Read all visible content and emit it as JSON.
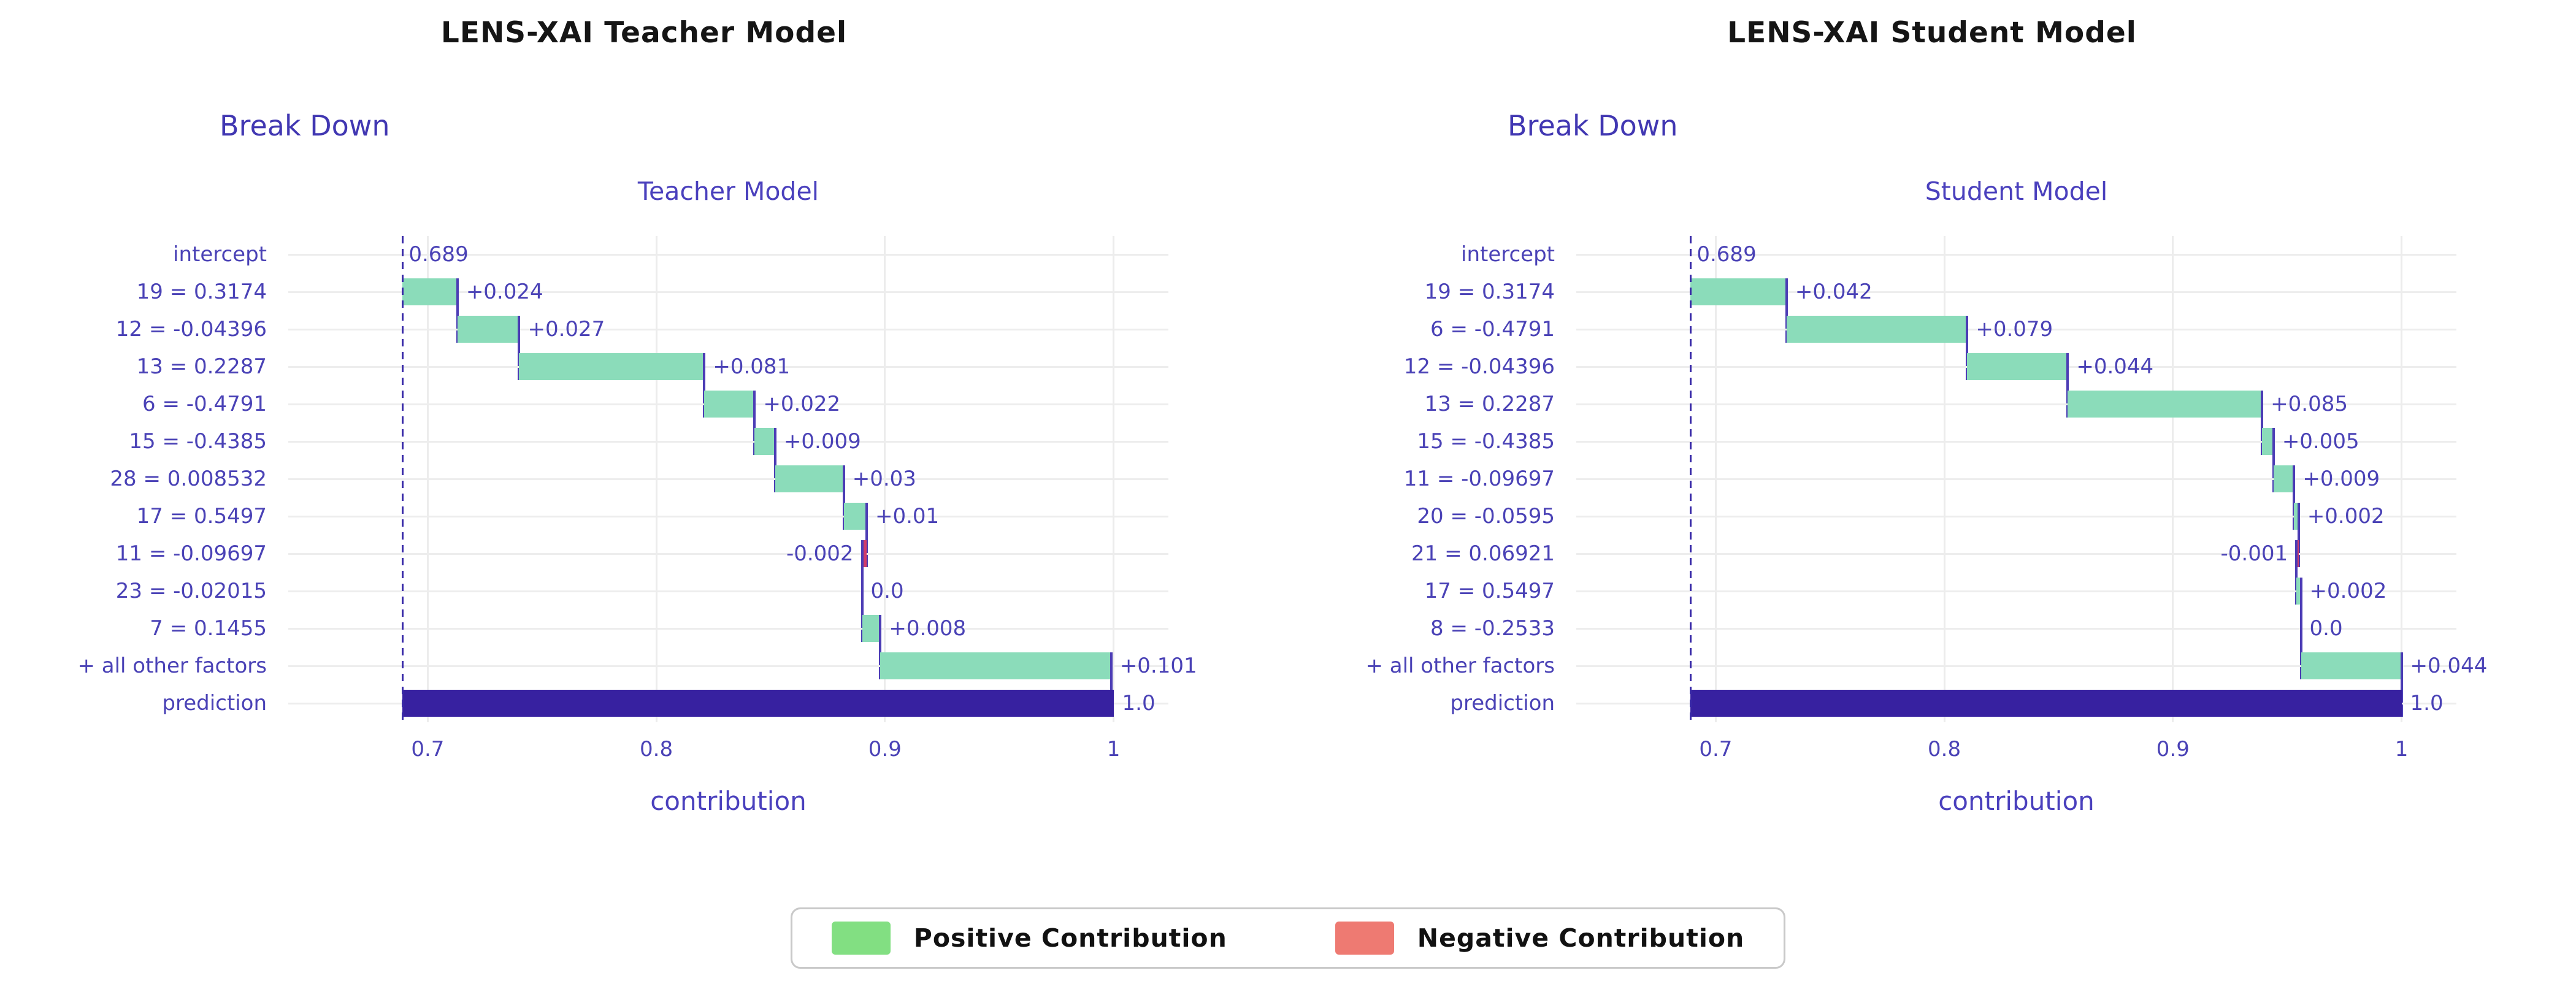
{
  "legend": {
    "positive_label": "Positive Contribution",
    "negative_label": "Negative Contribution"
  },
  "colors": {
    "positive_bar": "#8bdcba",
    "negative_bar": "#d23c69",
    "prediction_bar": "#3721a0",
    "connector": "#4c3db5",
    "dashed_line": "#3a2ba8",
    "grid": "#ededed",
    "axis_text": "#4a42b6",
    "title_text": "#4a40bd",
    "legend_positive": "#82df82",
    "legend_negative": "#ee7a72"
  },
  "chart_data": [
    {
      "type": "bar",
      "variant": "breakdown-waterfall",
      "panel_header": "LENS-XAI Teacher Model",
      "subtitle": "Break Down",
      "title": "Teacher Model",
      "xlabel": "contribution",
      "legend_position": "bottom-center-shared",
      "grid": true,
      "intercept": 0.689,
      "x_range": [
        0.639,
        1.024
      ],
      "x_ticks": [
        {
          "value": 0.7,
          "label": "0.7"
        },
        {
          "value": 0.8,
          "label": "0.8"
        },
        {
          "value": 0.9,
          "label": "0.9"
        },
        {
          "value": 1.0,
          "label": "1"
        }
      ],
      "rows": [
        {
          "label": "intercept",
          "kind": "intercept",
          "text": "0.689"
        },
        {
          "label": "19 = 0.3174",
          "kind": "pos",
          "delta": 0.024,
          "text": "+0.024"
        },
        {
          "label": "12 = -0.04396",
          "kind": "pos",
          "delta": 0.027,
          "text": "+0.027"
        },
        {
          "label": "13 = 0.2287",
          "kind": "pos",
          "delta": 0.081,
          "text": "+0.081"
        },
        {
          "label": "6 = -0.4791",
          "kind": "pos",
          "delta": 0.022,
          "text": "+0.022"
        },
        {
          "label": "15 = -0.4385",
          "kind": "pos",
          "delta": 0.009,
          "text": "+0.009"
        },
        {
          "label": "28 = 0.008532",
          "kind": "pos",
          "delta": 0.03,
          "text": "+0.03"
        },
        {
          "label": "17 = 0.5497",
          "kind": "pos",
          "delta": 0.01,
          "text": "+0.01"
        },
        {
          "label": "11 = -0.09697",
          "kind": "neg",
          "delta": -0.002,
          "text": "-0.002"
        },
        {
          "label": "23 = -0.02015",
          "kind": "zero",
          "delta": 0.0,
          "text": "0.0"
        },
        {
          "label": "7 = 0.1455",
          "kind": "pos",
          "delta": 0.008,
          "text": "+0.008"
        },
        {
          "label": "+ all other factors",
          "kind": "pos",
          "delta": 0.101,
          "text": "+0.101"
        },
        {
          "label": "prediction",
          "kind": "prediction",
          "value": 1.0,
          "text": "1.0"
        }
      ]
    },
    {
      "type": "bar",
      "variant": "breakdown-waterfall",
      "panel_header": "LENS-XAI Student Model",
      "subtitle": "Break Down",
      "title": "Student Model",
      "xlabel": "contribution",
      "legend_position": "bottom-center-shared",
      "grid": true,
      "intercept": 0.689,
      "x_range": [
        0.639,
        1.024
      ],
      "x_ticks": [
        {
          "value": 0.7,
          "label": "0.7"
        },
        {
          "value": 0.8,
          "label": "0.8"
        },
        {
          "value": 0.9,
          "label": "0.9"
        },
        {
          "value": 1.0,
          "label": "1"
        }
      ],
      "rows": [
        {
          "label": "intercept",
          "kind": "intercept",
          "text": "0.689"
        },
        {
          "label": "19 = 0.3174",
          "kind": "pos",
          "delta": 0.042,
          "text": "+0.042"
        },
        {
          "label": "6 = -0.4791",
          "kind": "pos",
          "delta": 0.079,
          "text": "+0.079"
        },
        {
          "label": "12 = -0.04396",
          "kind": "pos",
          "delta": 0.044,
          "text": "+0.044"
        },
        {
          "label": "13 = 0.2287",
          "kind": "pos",
          "delta": 0.085,
          "text": "+0.085"
        },
        {
          "label": "15 = -0.4385",
          "kind": "pos",
          "delta": 0.005,
          "text": "+0.005"
        },
        {
          "label": "11 = -0.09697",
          "kind": "pos",
          "delta": 0.009,
          "text": "+0.009"
        },
        {
          "label": "20 = -0.0595",
          "kind": "pos",
          "delta": 0.002,
          "text": "+0.002"
        },
        {
          "label": "21 = 0.06921",
          "kind": "neg",
          "delta": -0.001,
          "text": "-0.001"
        },
        {
          "label": "17 = 0.5497",
          "kind": "pos",
          "delta": 0.002,
          "text": "+0.002"
        },
        {
          "label": "8 = -0.2533",
          "kind": "zero",
          "delta": 0.0,
          "text": "0.0"
        },
        {
          "label": "+ all other factors",
          "kind": "pos",
          "delta": 0.044,
          "text": "+0.044"
        },
        {
          "label": "prediction",
          "kind": "prediction",
          "value": 1.0,
          "text": "1.0"
        }
      ]
    }
  ]
}
